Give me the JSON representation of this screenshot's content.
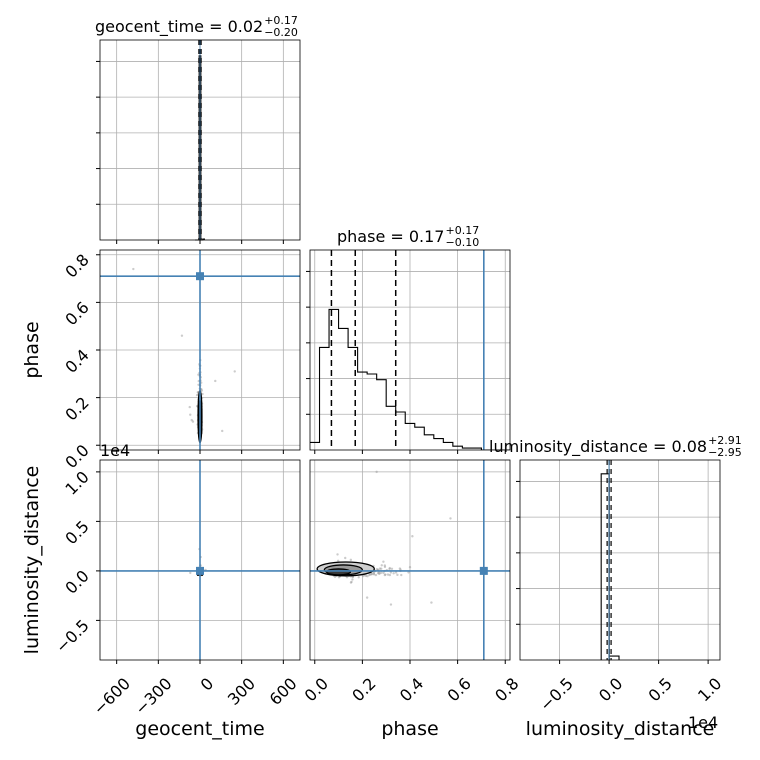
{
  "chart_data": {
    "type": "corner",
    "truth_color": "#4682b4",
    "parameters": [
      "geocent_time",
      "phase",
      "luminosity_distance"
    ],
    "titles": [
      {
        "param": "geocent_time",
        "text": "geocent_time = 0.02",
        "plus": "+0.17",
        "minus": "−0.20"
      },
      {
        "param": "phase",
        "text": "phase = 0.17",
        "plus": "+0.17",
        "minus": "−0.10"
      },
      {
        "param": "luminosity_distance",
        "text": "luminosity_distance = 0.08",
        "plus": "+2.91",
        "minus": "−2.95"
      }
    ],
    "axis_labels": {
      "x": [
        "geocent_time",
        "phase",
        "luminosity_distance"
      ],
      "y": [
        "phase",
        "luminosity_distance"
      ]
    },
    "ticks": {
      "geocent_time": {
        "values": [
          -600,
          -300,
          0,
          300,
          600
        ],
        "labels": [
          "−600",
          "−300",
          "0",
          "300",
          "600"
        ]
      },
      "phase": {
        "values": [
          0.0,
          0.2,
          0.4,
          0.6,
          0.8
        ],
        "labels": [
          "0.0",
          "0.2",
          "0.4",
          "0.6",
          "0.8"
        ]
      },
      "luminosity_distance": {
        "values": [
          -0.5,
          0.0,
          0.5,
          1.0
        ],
        "labels": [
          "−0.5",
          "0.0",
          "0.5",
          "1.0"
        ]
      }
    },
    "offset_text": "1e4",
    "ranges": {
      "geocent_time": [
        -720,
        720
      ],
      "phase": [
        -0.02,
        0.82
      ],
      "luminosity_distance": [
        -0.9,
        1.12
      ]
    },
    "truths": {
      "geocent_time": 0,
      "phase": 0.71,
      "luminosity_distance": 0
    },
    "quantiles": {
      "phase": [
        0.07,
        0.17,
        0.34
      ]
    },
    "hist_phase": {
      "bin_edges": [
        -0.02,
        0.02,
        0.06,
        0.1,
        0.14,
        0.18,
        0.22,
        0.26,
        0.3,
        0.34,
        0.38,
        0.42,
        0.46,
        0.5,
        0.54,
        0.58,
        0.62,
        0.66,
        0.7,
        0.74,
        0.78,
        0.82
      ],
      "values": [
        0.04,
        0.54,
        0.74,
        0.64,
        0.54,
        0.41,
        0.4,
        0.37,
        0.23,
        0.2,
        0.14,
        0.12,
        0.08,
        0.06,
        0.04,
        0.02,
        0.01,
        0.01,
        0.0,
        0.0,
        0.0
      ]
    },
    "hist_geocent_time": {
      "bins": [
        [
          -36,
          -6,
          0.0
        ],
        [
          -6,
          6,
          0.98
        ],
        [
          6,
          20,
          0.0
        ],
        [
          20,
          36,
          0.005
        ]
      ]
    },
    "hist_luminosity_distance": {
      "bins": [
        [
          -0.08,
          0.0,
          0.95
        ],
        [
          0.0,
          0.1,
          0.02
        ]
      ]
    },
    "grid": true
  }
}
